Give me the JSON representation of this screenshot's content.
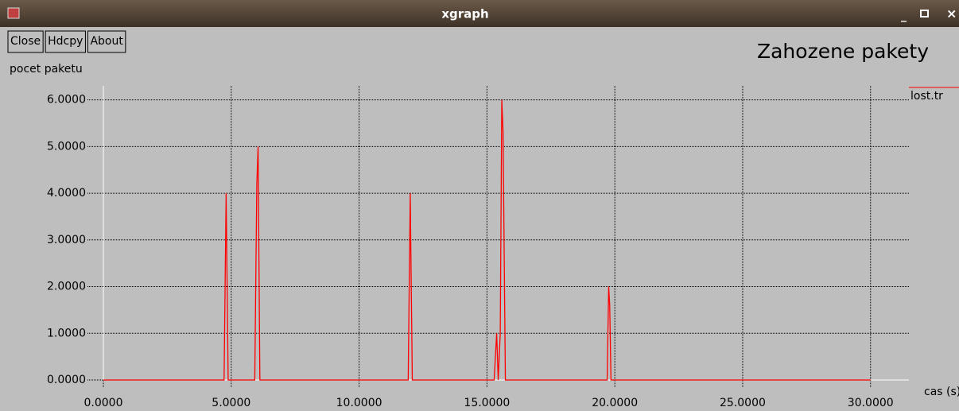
{
  "window": {
    "title": "xgraph",
    "buttons": [
      "Close",
      "Hdcpy",
      "About"
    ]
  },
  "chart_data": {
    "type": "line",
    "title": "Zahozene pakety",
    "ylabel": "pocet paketu",
    "xlabel": "cas (s)",
    "x": [
      0,
      4.72,
      4.8,
      4.88,
      5.92,
      6.0,
      6.05,
      6.12,
      11.92,
      12.0,
      12.08,
      15.28,
      15.38,
      15.44,
      15.52,
      15.58,
      15.63,
      15.72,
      19.7,
      19.76,
      19.8,
      19.85,
      30
    ],
    "series": [
      {
        "name": "lost.tr",
        "color": "#ff0000",
        "values": [
          0,
          0,
          4,
          0,
          0,
          4.2,
          5,
          0,
          0,
          4,
          0,
          0,
          1,
          0,
          1,
          6,
          5.3,
          0,
          0,
          2,
          1.6,
          0,
          0
        ]
      }
    ],
    "xlim": [
      0,
      31.5
    ],
    "ylim": [
      0,
      6.3
    ],
    "xticks": [
      {
        "value": 0,
        "label": "0.0000"
      },
      {
        "value": 5,
        "label": "5.0000"
      },
      {
        "value": 10,
        "label": "10.0000"
      },
      {
        "value": 15,
        "label": "15.0000"
      },
      {
        "value": 20,
        "label": "20.0000"
      },
      {
        "value": 25,
        "label": "25.0000"
      },
      {
        "value": 30,
        "label": "30.0000"
      }
    ],
    "yticks": [
      {
        "value": 0,
        "label": "0.0000"
      },
      {
        "value": 1,
        "label": "1.0000"
      },
      {
        "value": 2,
        "label": "2.0000"
      },
      {
        "value": 3,
        "label": "3.0000"
      },
      {
        "value": 4,
        "label": "4.0000"
      },
      {
        "value": 5,
        "label": "5.0000"
      },
      {
        "value": 6,
        "label": "6.0000"
      }
    ],
    "grid": true,
    "legend": "right"
  }
}
